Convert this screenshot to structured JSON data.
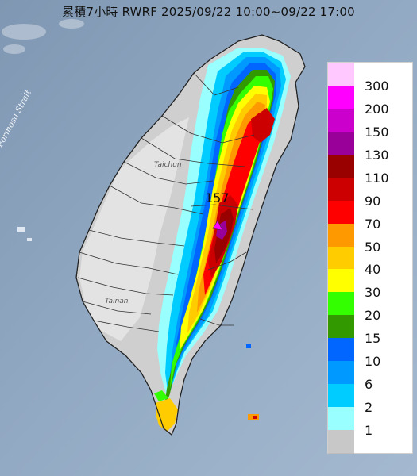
{
  "title": "累積7小時 RWRF 2025/09/22 10:00~09/22 17:00",
  "max_value": "157",
  "places": {
    "strait": "Formosa Strait",
    "taichung": "Taichun",
    "tainan": "Tainan"
  },
  "legend": {
    "items": [
      {
        "label": "300",
        "color": "#ffc8ff"
      },
      {
        "label": "200",
        "color": "#ff00ff"
      },
      {
        "label": "150",
        "color": "#cc00cc"
      },
      {
        "label": "130",
        "color": "#990099"
      },
      {
        "label": "110",
        "color": "#990000"
      },
      {
        "label": "90",
        "color": "#cc0000"
      },
      {
        "label": "70",
        "color": "#ff0000"
      },
      {
        "label": "50",
        "color": "#ff9900"
      },
      {
        "label": "40",
        "color": "#ffcc00"
      },
      {
        "label": "30",
        "color": "#ffff00"
      },
      {
        "label": "20",
        "color": "#33ff00"
      },
      {
        "label": "15",
        "color": "#339900"
      },
      {
        "label": "10",
        "color": "#0066ff"
      },
      {
        "label": "6",
        "color": "#0099ff"
      },
      {
        "label": "2",
        "color": "#00ccff"
      },
      {
        "label": "1",
        "color": "#99ffff"
      },
      {
        "label": "",
        "color": "#c8c8c8"
      }
    ],
    "note": "legend tick labels sit between swatches; bottom label 1"
  }
}
